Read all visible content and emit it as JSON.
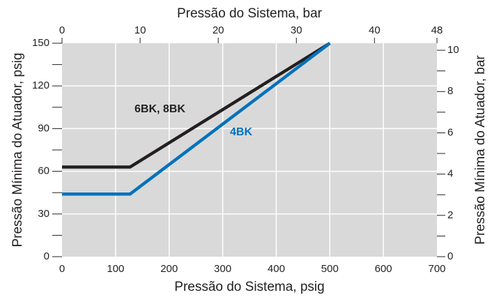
{
  "chart_data": {
    "type": "line",
    "xlabel": "Pressão do Sistema, psig",
    "x2label": "Pressão do Sistema, bar",
    "ylabel": "Pressão Mínima do Atuador, psig",
    "y2label": "Pressão Mínima do Atuador, bar",
    "xlim": [
      0,
      700
    ],
    "xticks": [
      0,
      100,
      200,
      300,
      400,
      500,
      600,
      700
    ],
    "x2lim": [
      0,
      48
    ],
    "x2ticks": [
      0,
      10,
      20,
      30,
      40,
      48
    ],
    "ylim": [
      0,
      150
    ],
    "yticks": [
      0,
      30,
      60,
      90,
      120,
      150
    ],
    "yminor_ticks": [
      15,
      45,
      75,
      105,
      135
    ],
    "y2lim": [
      0,
      10.34
    ],
    "y2ticks": [
      0,
      2,
      4,
      6,
      8,
      10
    ],
    "y2minor_ticks": [
      1,
      3,
      5,
      7,
      9
    ],
    "grid": true,
    "background": "#d9d9d9",
    "series": [
      {
        "name": "6BK, 8BK",
        "color": "#231f20",
        "x": [
          0,
          127,
          500
        ],
        "values": [
          63,
          63,
          150
        ]
      },
      {
        "name": "4BK",
        "color": "#0072bc",
        "x": [
          0,
          127,
          500
        ],
        "values": [
          44,
          44,
          150
        ]
      }
    ]
  }
}
